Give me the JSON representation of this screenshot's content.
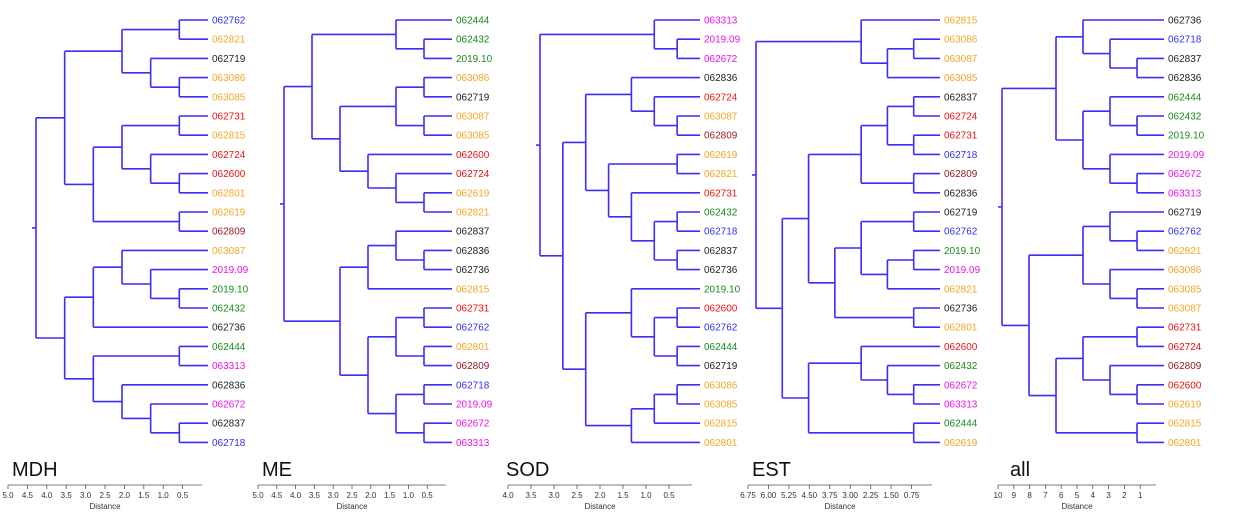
{
  "colors": {
    "branch": "#3a2ff2",
    "blue": "#2f2ff0",
    "orange": "#f5a623",
    "black": "#222222",
    "red": "#ee1111",
    "green": "#1a8a1a",
    "magenta": "#ee11ee",
    "brown": "#9b1b2b"
  },
  "panels": [
    {
      "name": "MDH",
      "axis_label": "Distance",
      "ticks": [
        "5.0",
        "4.5",
        "4.0",
        "3.5",
        "3.0",
        "2.5",
        "2.0",
        "1.5",
        "1.0",
        "0.5"
      ],
      "leaves": [
        {
          "label": "062762",
          "color": "blue"
        },
        {
          "label": "062821",
          "color": "orange"
        },
        {
          "label": "062719",
          "color": "black"
        },
        {
          "label": "063086",
          "color": "orange"
        },
        {
          "label": "063085",
          "color": "orange"
        },
        {
          "label": "062731",
          "color": "red"
        },
        {
          "label": "062815",
          "color": "orange"
        },
        {
          "label": "062724",
          "color": "red"
        },
        {
          "label": "062600",
          "color": "red"
        },
        {
          "label": "062801",
          "color": "orange"
        },
        {
          "label": "062619",
          "color": "orange"
        },
        {
          "label": "062809",
          "color": "brown"
        },
        {
          "label": "063087",
          "color": "orange"
        },
        {
          "label": "2019.09",
          "color": "magenta"
        },
        {
          "label": "2019.10",
          "color": "green"
        },
        {
          "label": "062432",
          "color": "green"
        },
        {
          "label": "062736",
          "color": "black"
        },
        {
          "label": "062444",
          "color": "green"
        },
        {
          "label": "063313",
          "color": "magenta"
        },
        {
          "label": "062836",
          "color": "black"
        },
        {
          "label": "062672",
          "color": "magenta"
        },
        {
          "label": "062837",
          "color": "black"
        },
        {
          "label": "062718",
          "color": "blue"
        }
      ]
    },
    {
      "name": "ME",
      "axis_label": "Distance",
      "ticks": [
        "5.0",
        "4.5",
        "4.0",
        "3.5",
        "3.0",
        "2.5",
        "2.0",
        "1.5",
        "1.0",
        "0.5"
      ],
      "leaves": [
        {
          "label": "062444",
          "color": "green"
        },
        {
          "label": "062432",
          "color": "green"
        },
        {
          "label": "2019.10",
          "color": "green"
        },
        {
          "label": "063086",
          "color": "orange"
        },
        {
          "label": "062719",
          "color": "black"
        },
        {
          "label": "063087",
          "color": "orange"
        },
        {
          "label": "063085",
          "color": "orange"
        },
        {
          "label": "062600",
          "color": "red"
        },
        {
          "label": "062724",
          "color": "red"
        },
        {
          "label": "062619",
          "color": "orange"
        },
        {
          "label": "062821",
          "color": "orange"
        },
        {
          "label": "062837",
          "color": "black"
        },
        {
          "label": "062836",
          "color": "black"
        },
        {
          "label": "062736",
          "color": "black"
        },
        {
          "label": "062815",
          "color": "orange"
        },
        {
          "label": "062731",
          "color": "red"
        },
        {
          "label": "062762",
          "color": "blue"
        },
        {
          "label": "062801",
          "color": "orange"
        },
        {
          "label": "062809",
          "color": "brown"
        },
        {
          "label": "062718",
          "color": "blue"
        },
        {
          "label": "2019.09",
          "color": "magenta"
        },
        {
          "label": "062672",
          "color": "magenta"
        },
        {
          "label": "063313",
          "color": "magenta"
        }
      ]
    },
    {
      "name": "SOD",
      "axis_label": "Distance",
      "ticks": [
        "4.0",
        "3.5",
        "3.0",
        "2.5",
        "2.0",
        "1.5",
        "1.0",
        "0.5"
      ],
      "leaves": [
        {
          "label": "063313",
          "color": "magenta"
        },
        {
          "label": "2019.09",
          "color": "magenta"
        },
        {
          "label": "062672",
          "color": "magenta"
        },
        {
          "label": "062836",
          "color": "black"
        },
        {
          "label": "062724",
          "color": "red"
        },
        {
          "label": "063087",
          "color": "orange"
        },
        {
          "label": "062809",
          "color": "brown"
        },
        {
          "label": "062619",
          "color": "orange"
        },
        {
          "label": "062821",
          "color": "orange"
        },
        {
          "label": "062731",
          "color": "red"
        },
        {
          "label": "062432",
          "color": "green"
        },
        {
          "label": "062718",
          "color": "blue"
        },
        {
          "label": "062837",
          "color": "black"
        },
        {
          "label": "062736",
          "color": "black"
        },
        {
          "label": "2019.10",
          "color": "green"
        },
        {
          "label": "062600",
          "color": "red"
        },
        {
          "label": "062762",
          "color": "blue"
        },
        {
          "label": "062444",
          "color": "green"
        },
        {
          "label": "062719",
          "color": "black"
        },
        {
          "label": "063086",
          "color": "orange"
        },
        {
          "label": "063085",
          "color": "orange"
        },
        {
          "label": "062815",
          "color": "orange"
        },
        {
          "label": "062801",
          "color": "orange"
        }
      ]
    },
    {
      "name": "EST",
      "axis_label": "Distance",
      "ticks": [
        "6.75",
        "6.00",
        "5.25",
        "4.50",
        "3.75",
        "3.00",
        "2.25",
        "1.50",
        "0.75"
      ],
      "leaves": [
        {
          "label": "062815",
          "color": "orange"
        },
        {
          "label": "063086",
          "color": "orange"
        },
        {
          "label": "063087",
          "color": "orange"
        },
        {
          "label": "063085",
          "color": "orange"
        },
        {
          "label": "062837",
          "color": "black"
        },
        {
          "label": "062724",
          "color": "red"
        },
        {
          "label": "062731",
          "color": "red"
        },
        {
          "label": "062718",
          "color": "blue"
        },
        {
          "label": "062809",
          "color": "brown"
        },
        {
          "label": "062836",
          "color": "black"
        },
        {
          "label": "062719",
          "color": "black"
        },
        {
          "label": "062762",
          "color": "blue"
        },
        {
          "label": "2019.10",
          "color": "green"
        },
        {
          "label": "2019.09",
          "color": "magenta"
        },
        {
          "label": "062821",
          "color": "orange"
        },
        {
          "label": "062736",
          "color": "black"
        },
        {
          "label": "062801",
          "color": "orange"
        },
        {
          "label": "062600",
          "color": "red"
        },
        {
          "label": "062432",
          "color": "green"
        },
        {
          "label": "062672",
          "color": "magenta"
        },
        {
          "label": "063313",
          "color": "magenta"
        },
        {
          "label": "062444",
          "color": "green"
        },
        {
          "label": "062619",
          "color": "orange"
        }
      ]
    },
    {
      "name": "all",
      "axis_label": "Distance",
      "ticks": [
        "10",
        "9",
        "8",
        "7",
        "6",
        "5",
        "4",
        "3",
        "2",
        "1"
      ],
      "leaves": [
        {
          "label": "062736",
          "color": "black"
        },
        {
          "label": "062718",
          "color": "blue"
        },
        {
          "label": "062837",
          "color": "black"
        },
        {
          "label": "062836",
          "color": "black"
        },
        {
          "label": "062444",
          "color": "green"
        },
        {
          "label": "062432",
          "color": "green"
        },
        {
          "label": "2019.10",
          "color": "green"
        },
        {
          "label": "2019.09",
          "color": "magenta"
        },
        {
          "label": "062672",
          "color": "magenta"
        },
        {
          "label": "063313",
          "color": "magenta"
        },
        {
          "label": "062719",
          "color": "black"
        },
        {
          "label": "062762",
          "color": "blue"
        },
        {
          "label": "062821",
          "color": "orange"
        },
        {
          "label": "063086",
          "color": "orange"
        },
        {
          "label": "063085",
          "color": "orange"
        },
        {
          "label": "063087",
          "color": "orange"
        },
        {
          "label": "062731",
          "color": "red"
        },
        {
          "label": "062724",
          "color": "red"
        },
        {
          "label": "062809",
          "color": "brown"
        },
        {
          "label": "062600",
          "color": "red"
        },
        {
          "label": "062619",
          "color": "orange"
        },
        {
          "label": "062815",
          "color": "orange"
        },
        {
          "label": "062801",
          "color": "orange"
        }
      ]
    }
  ]
}
